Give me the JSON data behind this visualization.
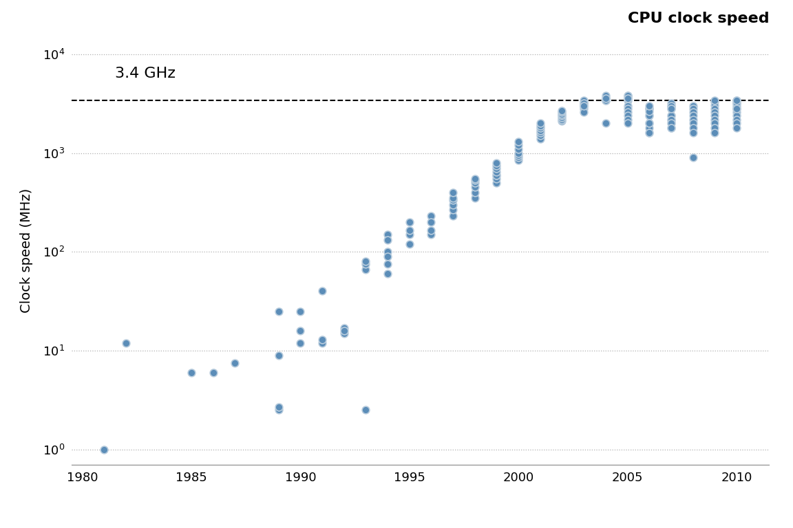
{
  "title": "CPU clock speed",
  "xlabel": "",
  "ylabel": "Clock speed (MHz)",
  "xlim": [
    1979.5,
    2011.5
  ],
  "dashed_line_y": 3400,
  "dashed_line_label": "3.4 GHz",
  "dot_color": "#5b8db8",
  "dot_edge_color": "#b8ccdd",
  "background_color": "#ffffff",
  "data": [
    [
      1981,
      1.0
    ],
    [
      1982,
      12.0
    ],
    [
      1985,
      6.0
    ],
    [
      1986,
      6.0
    ],
    [
      1987,
      7.5
    ],
    [
      1989,
      2.5
    ],
    [
      1989,
      2.7
    ],
    [
      1989,
      9.0
    ],
    [
      1989,
      25.0
    ],
    [
      1990,
      16.0
    ],
    [
      1990,
      25.0
    ],
    [
      1990,
      12.0
    ],
    [
      1991,
      12.0
    ],
    [
      1991,
      13.0
    ],
    [
      1991,
      40.0
    ],
    [
      1992,
      17.0
    ],
    [
      1992,
      15.0
    ],
    [
      1992,
      16.0
    ],
    [
      1993,
      66.0
    ],
    [
      1993,
      2.5
    ],
    [
      1993,
      75.0
    ],
    [
      1993,
      80.0
    ],
    [
      1994,
      100.0
    ],
    [
      1994,
      60.0
    ],
    [
      1994,
      75.0
    ],
    [
      1994,
      90.0
    ],
    [
      1994,
      150.0
    ],
    [
      1994,
      133.0
    ],
    [
      1995,
      150.0
    ],
    [
      1995,
      120.0
    ],
    [
      1995,
      166.0
    ],
    [
      1995,
      200.0
    ],
    [
      1996,
      233.0
    ],
    [
      1996,
      200.0
    ],
    [
      1996,
      150.0
    ],
    [
      1996,
      166.0
    ],
    [
      1997,
      233.0
    ],
    [
      1997,
      266.0
    ],
    [
      1997,
      300.0
    ],
    [
      1997,
      333.0
    ],
    [
      1997,
      350.0
    ],
    [
      1997,
      400.0
    ],
    [
      1998,
      350.0
    ],
    [
      1998,
      400.0
    ],
    [
      1998,
      450.0
    ],
    [
      1998,
      500.0
    ],
    [
      1998,
      533.0
    ],
    [
      1998,
      550.0
    ],
    [
      1999,
      500.0
    ],
    [
      1999,
      550.0
    ],
    [
      1999,
      600.0
    ],
    [
      1999,
      600.0
    ],
    [
      1999,
      650.0
    ],
    [
      1999,
      700.0
    ],
    [
      1999,
      750.0
    ],
    [
      1999,
      800.0
    ],
    [
      2000,
      850.0
    ],
    [
      2000,
      900.0
    ],
    [
      2000,
      950.0
    ],
    [
      2000,
      1000.0
    ],
    [
      2000,
      1100.0
    ],
    [
      2000,
      1200.0
    ],
    [
      2000,
      1300.0
    ],
    [
      2001,
      1400.0
    ],
    [
      2001,
      1500.0
    ],
    [
      2001,
      1600.0
    ],
    [
      2001,
      1700.0
    ],
    [
      2001,
      1800.0
    ],
    [
      2001,
      1900.0
    ],
    [
      2001,
      2000.0
    ],
    [
      2002,
      2100.0
    ],
    [
      2002,
      2200.0
    ],
    [
      2002,
      2300.0
    ],
    [
      2002,
      2400.0
    ],
    [
      2002,
      2500.0
    ],
    [
      2002,
      2600.0
    ],
    [
      2002,
      2700.0
    ],
    [
      2003,
      2800.0
    ],
    [
      2003,
      3000.0
    ],
    [
      2003,
      3200.0
    ],
    [
      2003,
      3400.0
    ],
    [
      2003,
      3200.0
    ],
    [
      2003,
      2600.0
    ],
    [
      2003,
      3000.0
    ],
    [
      2004,
      3400.0
    ],
    [
      2004,
      3600.0
    ],
    [
      2004,
      3800.0
    ],
    [
      2004,
      3400.0
    ],
    [
      2004,
      2000.0
    ],
    [
      2004,
      3400.0
    ],
    [
      2004,
      3600.0
    ],
    [
      2005,
      3800.0
    ],
    [
      2005,
      3400.0
    ],
    [
      2005,
      3600.0
    ],
    [
      2005,
      3800.0
    ],
    [
      2005,
      3600.0
    ],
    [
      2005,
      3000.0
    ],
    [
      2005,
      2800.0
    ],
    [
      2005,
      2600.0
    ],
    [
      2005,
      2400.0
    ],
    [
      2005,
      2200.0
    ],
    [
      2005,
      2000.0
    ],
    [
      2006,
      1800.0
    ],
    [
      2006,
      1600.0
    ],
    [
      2006,
      2800.0
    ],
    [
      2006,
      2400.0
    ],
    [
      2006,
      2000.0
    ],
    [
      2006,
      2800.0
    ],
    [
      2006,
      2400.0
    ],
    [
      2006,
      2000.0
    ],
    [
      2006,
      1600.0
    ],
    [
      2006,
      2660.0
    ],
    [
      2006,
      3000.0
    ],
    [
      2007,
      2200.0
    ],
    [
      2007,
      2000.0
    ],
    [
      2007,
      1800.0
    ],
    [
      2007,
      2400.0
    ],
    [
      2007,
      2800.0
    ],
    [
      2007,
      3000.0
    ],
    [
      2007,
      2400.0
    ],
    [
      2007,
      2200.0
    ],
    [
      2007,
      2000.0
    ],
    [
      2007,
      1800.0
    ],
    [
      2007,
      3200.0
    ],
    [
      2007,
      3000.0
    ],
    [
      2007,
      2800.0
    ],
    [
      2008,
      3000.0
    ],
    [
      2008,
      2800.0
    ],
    [
      2008,
      2600.0
    ],
    [
      2008,
      2400.0
    ],
    [
      2008,
      2200.0
    ],
    [
      2008,
      2000.0
    ],
    [
      2008,
      1800.0
    ],
    [
      2008,
      1600.0
    ],
    [
      2008,
      900.0
    ],
    [
      2009,
      3300.0
    ],
    [
      2009,
      3060.0
    ],
    [
      2009,
      2800.0
    ],
    [
      2009,
      2600.0
    ],
    [
      2009,
      2400.0
    ],
    [
      2009,
      2200.0
    ],
    [
      2009,
      2000.0
    ],
    [
      2009,
      1800.0
    ],
    [
      2009,
      1600.0
    ],
    [
      2009,
      3400.0
    ],
    [
      2010,
      3400.0
    ],
    [
      2010,
      3200.0
    ],
    [
      2010,
      3000.0
    ],
    [
      2010,
      2800.0
    ],
    [
      2010,
      2600.0
    ],
    [
      2010,
      2400.0
    ],
    [
      2010,
      2200.0
    ],
    [
      2010,
      2000.0
    ],
    [
      2010,
      1800.0
    ],
    [
      2010,
      3200.0
    ],
    [
      2010,
      3400.0
    ],
    [
      2010,
      2800.0
    ]
  ]
}
